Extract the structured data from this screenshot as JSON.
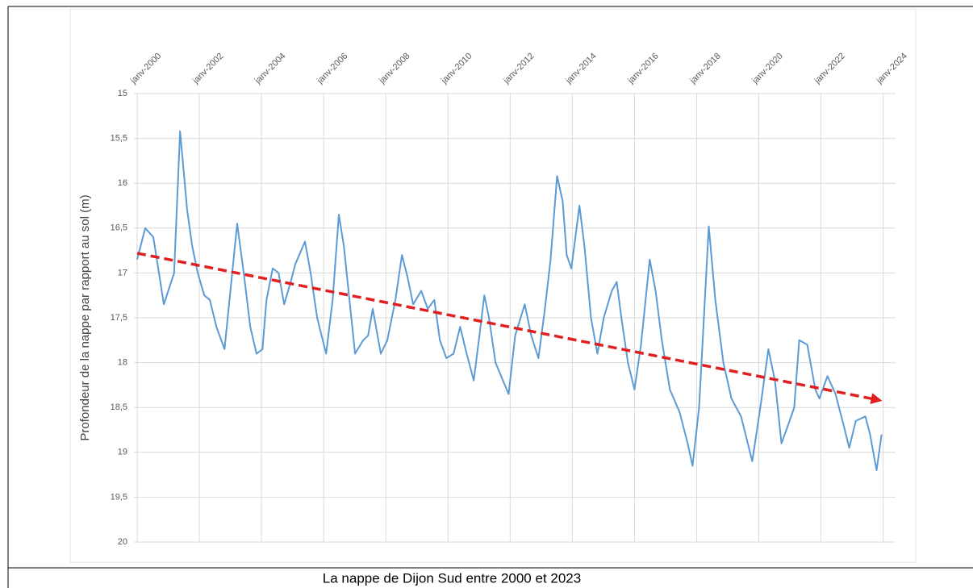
{
  "chart_data": {
    "type": "line",
    "caption": "La nappe de Dijon Sud entre 2000 et 2023",
    "y_label": "Profondeur de la nappe par rapport au sol (m)",
    "ylim": [
      15,
      20
    ],
    "y_reversed": true,
    "yticks": [
      15,
      {
        "value": 15.5,
        "label": "15,5"
      },
      16,
      {
        "value": 16.5,
        "label": "16,5"
      },
      17,
      {
        "value": 17.5,
        "label": "17,5"
      },
      18,
      {
        "value": 18.5,
        "label": "18,5"
      },
      19,
      {
        "value": 19.5,
        "label": "19,5"
      },
      20
    ],
    "xlim": [
      2000,
      2024.4
    ],
    "xticks": [
      {
        "value": 2000,
        "label": "janv-2000"
      },
      {
        "value": 2002,
        "label": "janv-2002"
      },
      {
        "value": 2004,
        "label": "janv-2004"
      },
      {
        "value": 2006,
        "label": "janv-2006"
      },
      {
        "value": 2008,
        "label": "janv-2008"
      },
      {
        "value": 2010,
        "label": "janv-2010"
      },
      {
        "value": 2012,
        "label": "janv-2012"
      },
      {
        "value": 2014,
        "label": "janv-2014"
      },
      {
        "value": 2016,
        "label": "janv-2016"
      },
      {
        "value": 2018,
        "label": "janv-2018"
      },
      {
        "value": 2020,
        "label": "janv-2020"
      },
      {
        "value": 2022,
        "label": "janv-2022"
      },
      {
        "value": 2024,
        "label": "janv-2024"
      }
    ],
    "grid": true,
    "color": "#5b9bd5",
    "x": [
      2000,
      2000.26,
      2000.52,
      2000.86,
      2001.19,
      2001.38,
      2001.61,
      2001.77,
      2001.95,
      2002.16,
      2002.34,
      2002.55,
      2002.81,
      2003.22,
      2003.43,
      2003.64,
      2003.84,
      2004.03,
      2004.16,
      2004.36,
      2004.55,
      2004.73,
      2004.94,
      2005.09,
      2005.4,
      2005.58,
      2005.79,
      2006.08,
      2006.29,
      2006.49,
      2006.65,
      2006.86,
      2007.01,
      2007.27,
      2007.43,
      2007.58,
      2007.84,
      2008.05,
      2008.31,
      2008.52,
      2008.7,
      2008.88,
      2009.14,
      2009.35,
      2009.56,
      2009.74,
      2009.95,
      2010.18,
      2010.39,
      2010.6,
      2010.83,
      2011.01,
      2011.17,
      2011.32,
      2011.53,
      2011.95,
      2012.16,
      2012.47,
      2012.68,
      2012.91,
      2013.12,
      2013.3,
      2013.51,
      2013.69,
      2013.82,
      2013.97,
      2014.23,
      2014.39,
      2014.6,
      2014.81,
      2015.01,
      2015.27,
      2015.43,
      2015.58,
      2015.79,
      2016,
      2016.21,
      2016.49,
      2016.68,
      2016.88,
      2017.14,
      2017.45,
      2017.71,
      2017.87,
      2018.08,
      2018.39,
      2018.6,
      2018.86,
      2019.12,
      2019.43,
      2019.79,
      2020.05,
      2020.31,
      2020.52,
      2020.73,
      2020.94,
      2021.14,
      2021.3,
      2021.56,
      2021.82,
      2021.95,
      2022.21,
      2022.47,
      2022.73,
      2022.91,
      2023.12,
      2023.43,
      2023.58,
      2023.79,
      2023.95
    ],
    "values": [
      16.85,
      16.5,
      16.6,
      17.35,
      17.0,
      15.42,
      16.3,
      16.7,
      17.0,
      17.25,
      17.3,
      17.6,
      17.85,
      16.45,
      17.0,
      17.6,
      17.9,
      17.85,
      17.3,
      16.95,
      17.0,
      17.35,
      17.1,
      16.9,
      16.65,
      17.0,
      17.5,
      17.9,
      17.3,
      16.35,
      16.7,
      17.4,
      17.9,
      17.75,
      17.7,
      17.4,
      17.9,
      17.75,
      17.3,
      16.8,
      17.05,
      17.35,
      17.2,
      17.4,
      17.3,
      17.75,
      17.95,
      17.9,
      17.6,
      17.9,
      18.2,
      17.7,
      17.25,
      17.5,
      18.0,
      18.35,
      17.7,
      17.35,
      17.7,
      17.95,
      17.4,
      16.85,
      15.92,
      16.2,
      16.8,
      16.95,
      16.25,
      16.7,
      17.5,
      17.9,
      17.5,
      17.2,
      17.1,
      17.5,
      18.0,
      18.3,
      17.8,
      16.85,
      17.2,
      17.75,
      18.3,
      18.55,
      18.9,
      19.15,
      18.5,
      16.48,
      17.3,
      18.0,
      18.4,
      18.6,
      19.1,
      18.5,
      17.85,
      18.2,
      18.9,
      18.7,
      18.5,
      17.75,
      17.8,
      18.3,
      18.4,
      18.15,
      18.35,
      18.7,
      18.95,
      18.65,
      18.6,
      18.8,
      19.2,
      18.8
    ],
    "trend": {
      "x": [
        2000,
        2023.9
      ],
      "values": [
        16.78,
        18.42
      ],
      "color": "#e02020"
    }
  }
}
